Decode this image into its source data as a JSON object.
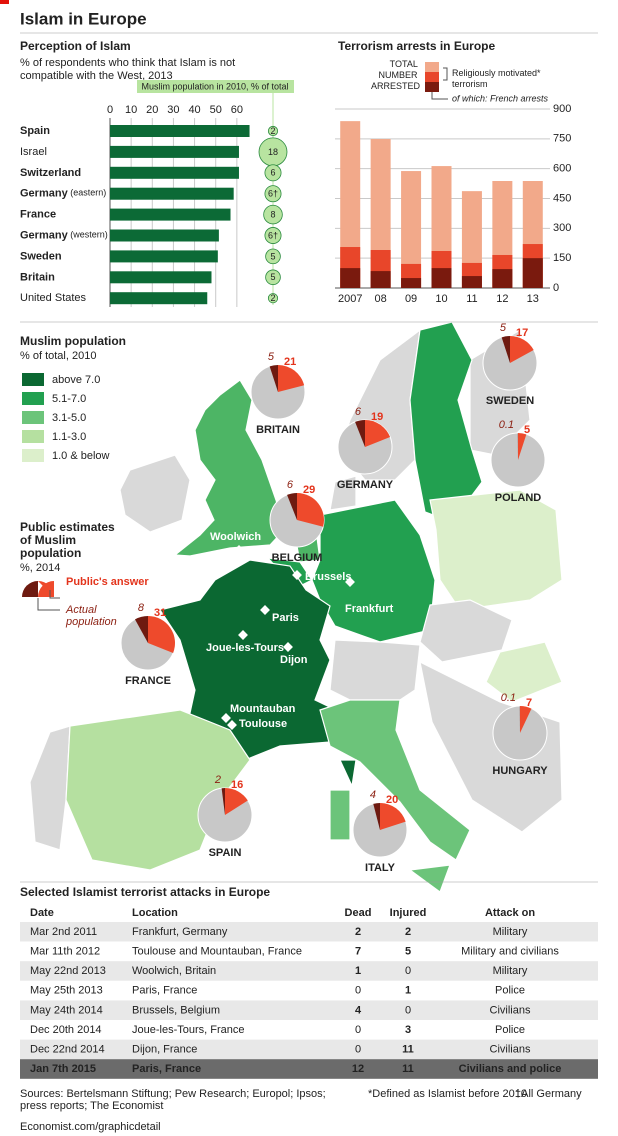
{
  "title": "Islam in Europe",
  "chart_data": [
    {
      "type": "hbar",
      "title": "Perception of Islam",
      "subtitle": "% of respondents who think that Islam is not compatible with the West, 2013",
      "categories": [
        "Spain",
        "Israel",
        "Switzerland",
        "Germany (eastern)",
        "France",
        "Germany (western)",
        "Sweden",
        "Britain",
        "United States"
      ],
      "highlight": [
        true,
        false,
        true,
        true,
        true,
        true,
        true,
        true,
        false
      ],
      "values": [
        66,
        61,
        61,
        58.5,
        57,
        51.5,
        51,
        48,
        46
      ],
      "color": "#0c6a36",
      "xlim": [
        0,
        70
      ],
      "xticks": [
        0,
        10,
        20,
        30,
        40,
        50,
        60
      ],
      "grid": true,
      "bubbles": {
        "title": "Muslim population in 2010, % of total",
        "values": [
          2,
          18,
          6,
          6,
          8,
          6,
          5,
          5,
          2
        ],
        "value_labels": [
          "2",
          "18",
          "6",
          "6†",
          "8",
          "6†",
          "5",
          "5",
          "2"
        ],
        "color": "#b8e4a0"
      }
    },
    {
      "type": "overlap-bar",
      "title": "Terrorism arrests in Europe",
      "categories": [
        "2007",
        "08",
        "09",
        "10",
        "11",
        "12",
        "13"
      ],
      "series": [
        {
          "name": "TOTAL NUMBER ARRESTED",
          "color": "#f2a98a",
          "values": [
            839,
            749,
            588,
            613,
            487,
            538,
            538
          ]
        },
        {
          "name": "Religiously motivated* terrorism",
          "color": "#e8462a",
          "values": [
            206,
            191,
            121,
            186,
            126,
            166,
            221
          ]
        },
        {
          "name": "of which: French arrests",
          "color": "#7a1a0e",
          "values": [
            100,
            85,
            50,
            100,
            60,
            95,
            150
          ]
        }
      ],
      "ylim": [
        0,
        900
      ],
      "yticks": [
        0,
        150,
        300,
        450,
        600,
        750,
        900
      ],
      "grid": true
    }
  ],
  "map": {
    "title": "Muslim population",
    "subtitle": "% of total, 2010",
    "legend": [
      {
        "label": "above 7.0",
        "color": "#0b6832"
      },
      {
        "label": "5.1-7.0",
        "color": "#22a050"
      },
      {
        "label": "3.1-5.0",
        "color": "#6cc47a"
      },
      {
        "label": "1.1-3.0",
        "color": "#b5e0a0"
      },
      {
        "label": "1.0 & below",
        "color": "#dcefcb"
      }
    ],
    "cities": [
      "Woolwich",
      "Brussels",
      "Paris",
      "Joue-les-Tours",
      "Dijon",
      "Frankfurt",
      "Mountauban",
      "Toulouse"
    ],
    "pies": {
      "title": "Public estimates of Muslim population",
      "subtitle": "%, 2014",
      "legend_estimate": "Public's answer",
      "legend_actual": "Actual population",
      "estimate_color": "#ee4a2c",
      "actual_color": "#6e1a10",
      "base_color": "#c8c8c8",
      "items": [
        {
          "country": "BRITAIN",
          "actual": 5,
          "estimate": 21
        },
        {
          "country": "BELGIUM",
          "actual": 6,
          "estimate": 29
        },
        {
          "country": "GERMANY",
          "actual": 6,
          "estimate": 19
        },
        {
          "country": "SWEDEN",
          "actual": 5,
          "estimate": 17
        },
        {
          "country": "POLAND",
          "actual": 0.1,
          "estimate": 5
        },
        {
          "country": "FRANCE",
          "actual": 8,
          "estimate": 31
        },
        {
          "country": "HUNGARY",
          "actual": 0.1,
          "estimate": 7
        },
        {
          "country": "SPAIN",
          "actual": 2,
          "estimate": 16
        },
        {
          "country": "ITALY",
          "actual": 4,
          "estimate": 20
        }
      ]
    }
  },
  "table": {
    "title": "Selected Islamist terrorist attacks in Europe",
    "columns": [
      "Date",
      "Location",
      "Dead",
      "Injured",
      "Attack on"
    ],
    "rows": [
      [
        "Mar 2nd 2011",
        "Frankfurt, Germany",
        2,
        2,
        "Military"
      ],
      [
        "Mar 11th 2012",
        "Toulouse and Mountauban, France",
        7,
        5,
        "Military and civilians"
      ],
      [
        "May 22nd 2013",
        "Woolwich, Britain",
        1,
        0,
        "Military"
      ],
      [
        "May 25th 2013",
        "Paris, France",
        0,
        1,
        "Police"
      ],
      [
        "May 24th 2014",
        "Brussels, Belgium",
        4,
        0,
        "Civilians"
      ],
      [
        "Dec 20th 2014",
        "Joue-les-Tours, France",
        0,
        3,
        "Police"
      ],
      [
        "Dec 22nd 2014",
        "Dijon, France",
        0,
        11,
        "Civilians"
      ],
      [
        "Jan 7th 2015",
        "Paris, France",
        12,
        11,
        "Civilians and police"
      ]
    ]
  },
  "sources": "Sources: Bertelsmann Stiftung; Pew Research; Europol; Ipsos; press reports; The Economist",
  "footnote": "*Defined as Islamist before 2010",
  "footnote2": "†All Germany",
  "url": "Economist.com/graphicdetail"
}
